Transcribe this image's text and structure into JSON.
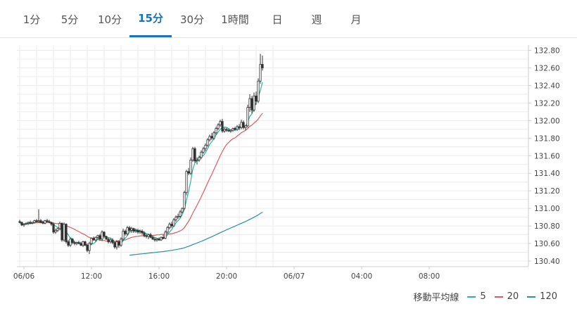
{
  "tabs": [
    {
      "label": "1分",
      "active": false
    },
    {
      "label": "5分",
      "active": false
    },
    {
      "label": "10分",
      "active": false
    },
    {
      "label": "15分",
      "active": true
    },
    {
      "label": "30分",
      "active": false
    },
    {
      "label": "1時間",
      "active": false
    },
    {
      "label": "日",
      "active": false
    },
    {
      "label": "週",
      "active": false
    },
    {
      "label": "月",
      "active": false
    }
  ],
  "legend": {
    "title": "移動平均線",
    "items": [
      {
        "label": "5",
        "color": "#26b898"
      },
      {
        "label": "20",
        "color": "#e05a5a"
      },
      {
        "label": "120",
        "color": "#2a8fa8"
      }
    ]
  },
  "chart_data": {
    "type": "candlestick",
    "y_ticks": [
      "130.40",
      "130.60",
      "130.80",
      "131.00",
      "131.20",
      "131.40",
      "131.60",
      "131.80",
      "132.00",
      "132.20",
      "132.40",
      "132.60",
      "132.80"
    ],
    "ylim": [
      130.32,
      132.86
    ],
    "x_ticks": [
      "06/06",
      "12:00",
      "16:00",
      "20:00",
      "06/07",
      "04:00",
      "08:00"
    ],
    "x_tick_index": [
      2,
      34,
      66,
      98,
      130,
      162,
      194
    ],
    "candles": [
      [
        130.85,
        130.87,
        130.83,
        130.84
      ],
      [
        130.84,
        130.85,
        130.8,
        130.81
      ],
      [
        130.81,
        130.83,
        130.79,
        130.82
      ],
      [
        130.82,
        130.84,
        130.81,
        130.83
      ],
      [
        130.83,
        130.85,
        130.81,
        130.84
      ],
      [
        130.84,
        130.86,
        130.82,
        130.83
      ],
      [
        130.83,
        130.85,
        130.82,
        130.84
      ],
      [
        130.84,
        130.87,
        130.83,
        130.86
      ],
      [
        130.86,
        130.88,
        130.84,
        130.85
      ],
      [
        130.85,
        130.99,
        130.84,
        130.86
      ],
      [
        130.86,
        130.88,
        130.83,
        130.84
      ],
      [
        130.84,
        130.86,
        130.82,
        130.83
      ],
      [
        130.83,
        130.87,
        130.82,
        130.86
      ],
      [
        130.86,
        130.88,
        130.84,
        130.85
      ],
      [
        130.85,
        130.87,
        130.83,
        130.84
      ],
      [
        130.84,
        130.85,
        130.8,
        130.82
      ],
      [
        130.82,
        130.84,
        130.71,
        130.73
      ],
      [
        130.73,
        130.77,
        130.71,
        130.75
      ],
      [
        130.75,
        130.78,
        130.73,
        130.77
      ],
      [
        130.77,
        130.85,
        130.75,
        130.83
      ],
      [
        130.83,
        130.84,
        130.62,
        130.64
      ],
      [
        130.64,
        130.84,
        130.62,
        130.82
      ],
      [
        130.82,
        130.83,
        130.6,
        130.62
      ],
      [
        130.62,
        130.64,
        130.56,
        130.58
      ],
      [
        130.58,
        130.67,
        130.56,
        130.65
      ],
      [
        130.65,
        130.66,
        130.59,
        130.61
      ],
      [
        130.61,
        130.63,
        130.58,
        130.6
      ],
      [
        130.6,
        130.62,
        130.58,
        130.61
      ],
      [
        130.61,
        130.63,
        130.59,
        130.6
      ],
      [
        130.6,
        130.62,
        130.57,
        130.58
      ],
      [
        130.58,
        130.63,
        130.56,
        130.62
      ],
      [
        130.62,
        130.63,
        130.57,
        130.58
      ],
      [
        130.58,
        130.6,
        130.5,
        130.52
      ],
      [
        130.52,
        130.62,
        130.48,
        130.6
      ],
      [
        130.6,
        130.67,
        130.58,
        130.66
      ],
      [
        130.66,
        130.68,
        130.63,
        130.64
      ],
      [
        130.64,
        130.68,
        130.62,
        130.67
      ],
      [
        130.67,
        130.7,
        130.65,
        130.69
      ],
      [
        130.69,
        130.71,
        130.63,
        130.65
      ],
      [
        130.65,
        130.75,
        130.63,
        130.73
      ],
      [
        130.73,
        130.74,
        130.66,
        130.68
      ],
      [
        130.68,
        130.69,
        130.64,
        130.65
      ],
      [
        130.65,
        130.67,
        130.6,
        130.62
      ],
      [
        130.62,
        130.66,
        130.6,
        130.64
      ],
      [
        130.64,
        130.66,
        130.59,
        130.61
      ],
      [
        130.61,
        130.62,
        130.54,
        130.56
      ],
      [
        130.56,
        130.64,
        130.53,
        130.62
      ],
      [
        130.62,
        130.64,
        130.55,
        130.58
      ],
      [
        130.58,
        130.67,
        130.56,
        130.65
      ],
      [
        130.65,
        130.77,
        130.63,
        130.74
      ],
      [
        130.74,
        130.76,
        130.69,
        130.71
      ],
      [
        130.71,
        130.8,
        130.69,
        130.78
      ],
      [
        130.78,
        130.8,
        130.73,
        130.75
      ],
      [
        130.75,
        130.79,
        130.72,
        130.77
      ],
      [
        130.77,
        130.78,
        130.72,
        130.74
      ],
      [
        130.74,
        130.77,
        130.72,
        130.75
      ],
      [
        130.75,
        130.77,
        130.71,
        130.73
      ],
      [
        130.73,
        130.76,
        130.71,
        130.74
      ],
      [
        130.74,
        130.76,
        130.7,
        130.72
      ],
      [
        130.72,
        130.74,
        130.67,
        130.69
      ],
      [
        130.69,
        130.71,
        130.66,
        130.68
      ],
      [
        130.68,
        130.71,
        130.65,
        130.7
      ],
      [
        130.7,
        130.72,
        130.66,
        130.67
      ],
      [
        130.67,
        130.69,
        130.64,
        130.65
      ],
      [
        130.65,
        130.67,
        130.62,
        130.64
      ],
      [
        130.64,
        130.66,
        130.62,
        130.65
      ],
      [
        130.65,
        130.67,
        130.63,
        130.64
      ],
      [
        130.64,
        130.68,
        130.63,
        130.67
      ],
      [
        130.67,
        130.7,
        130.65,
        130.66
      ],
      [
        130.66,
        130.75,
        130.65,
        130.73
      ],
      [
        130.73,
        130.8,
        130.71,
        130.78
      ],
      [
        130.78,
        130.84,
        130.76,
        130.82
      ],
      [
        130.82,
        130.85,
        130.78,
        130.8
      ],
      [
        130.8,
        130.89,
        130.79,
        130.87
      ],
      [
        130.87,
        130.92,
        130.85,
        130.9
      ],
      [
        130.9,
        130.94,
        130.88,
        130.91
      ],
      [
        130.91,
        130.98,
        130.89,
        130.96
      ],
      [
        130.96,
        131.01,
        130.94,
        131.0
      ],
      [
        131.0,
        131.2,
        130.98,
        131.18
      ],
      [
        131.18,
        131.44,
        131.15,
        131.42
      ],
      [
        131.42,
        131.46,
        131.38,
        131.4
      ],
      [
        131.4,
        131.58,
        131.38,
        131.55
      ],
      [
        131.55,
        131.7,
        131.53,
        131.68
      ],
      [
        131.68,
        131.7,
        131.52,
        131.54
      ],
      [
        131.54,
        131.58,
        131.5,
        131.55
      ],
      [
        131.55,
        131.6,
        131.53,
        131.58
      ],
      [
        131.58,
        131.66,
        131.56,
        131.64
      ],
      [
        131.64,
        131.7,
        131.62,
        131.68
      ],
      [
        131.68,
        131.74,
        131.65,
        131.72
      ],
      [
        131.72,
        131.8,
        131.7,
        131.78
      ],
      [
        131.78,
        131.84,
        131.76,
        131.82
      ],
      [
        131.82,
        131.86,
        131.78,
        131.8
      ],
      [
        131.8,
        131.88,
        131.78,
        131.86
      ],
      [
        131.86,
        131.93,
        131.84,
        131.91
      ],
      [
        131.91,
        131.97,
        131.89,
        131.95
      ],
      [
        131.95,
        132.01,
        131.93,
        131.99
      ],
      [
        131.99,
        132.02,
        131.86,
        131.88
      ],
      [
        131.88,
        131.92,
        131.86,
        131.9
      ],
      [
        131.9,
        131.92,
        131.87,
        131.89
      ],
      [
        131.89,
        131.91,
        131.87,
        131.88
      ],
      [
        131.88,
        131.9,
        131.86,
        131.89
      ],
      [
        131.89,
        131.92,
        131.87,
        131.91
      ],
      [
        131.91,
        131.93,
        131.88,
        131.9
      ],
      [
        131.9,
        131.95,
        131.88,
        131.93
      ],
      [
        131.93,
        131.96,
        131.89,
        131.92
      ],
      [
        131.92,
        132.01,
        131.9,
        131.98
      ],
      [
        131.98,
        132.0,
        131.9,
        131.92
      ],
      [
        131.92,
        131.95,
        131.89,
        131.94
      ],
      [
        131.94,
        132.18,
        131.92,
        132.15
      ],
      [
        132.15,
        132.3,
        132.1,
        132.25
      ],
      [
        132.25,
        132.28,
        132.08,
        132.12
      ],
      [
        132.12,
        132.32,
        132.1,
        132.28
      ],
      [
        132.28,
        132.33,
        132.18,
        132.22
      ],
      [
        132.22,
        132.48,
        132.2,
        132.45
      ],
      [
        132.45,
        132.76,
        132.42,
        132.64
      ],
      [
        132.64,
        132.74,
        132.57,
        132.6
      ]
    ]
  }
}
